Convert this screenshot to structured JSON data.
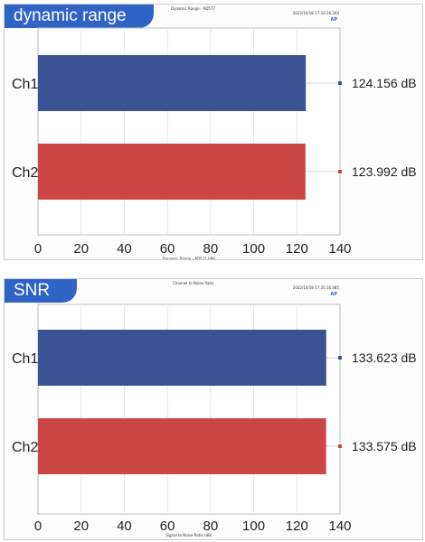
{
  "chart_data": [
    {
      "type": "bar",
      "orientation": "horizontal",
      "badge_label": "dynamic range",
      "title": "Dynamic Range - AD577",
      "timestamp": "2022/10/18 17:33:16.244",
      "logo": "AP",
      "xlabel": "Dynamic Range - AD577 (dB)",
      "categories": [
        "Ch1",
        "Ch2"
      ],
      "values": [
        124.156,
        123.992
      ],
      "value_labels": [
        "124.156 dB",
        "123.992 dB"
      ],
      "colors": [
        "#3b5394",
        "#cd4646"
      ],
      "xlim": [
        0,
        140
      ],
      "xticks": [
        "0",
        "20",
        "40",
        "60",
        "80",
        "100",
        "120",
        "140"
      ],
      "grid": "vertical"
    },
    {
      "type": "bar",
      "orientation": "horizontal",
      "badge_label": "SNR",
      "title": "Channel to Noise Ratio",
      "timestamp": "2022/10/18 17:35:16.485",
      "logo": "AP",
      "xlabel": "Signal to Noise Ratio (dB)",
      "categories": [
        "Ch1",
        "Ch2"
      ],
      "values": [
        133.623,
        133.575
      ],
      "value_labels": [
        "133.623 dB",
        "133.575 dB"
      ],
      "colors": [
        "#3b5394",
        "#cd4646"
      ],
      "xlim": [
        0,
        140
      ],
      "xticks": [
        "0",
        "20",
        "40",
        "60",
        "80",
        "100",
        "120",
        "140"
      ],
      "grid": "vertical"
    }
  ]
}
